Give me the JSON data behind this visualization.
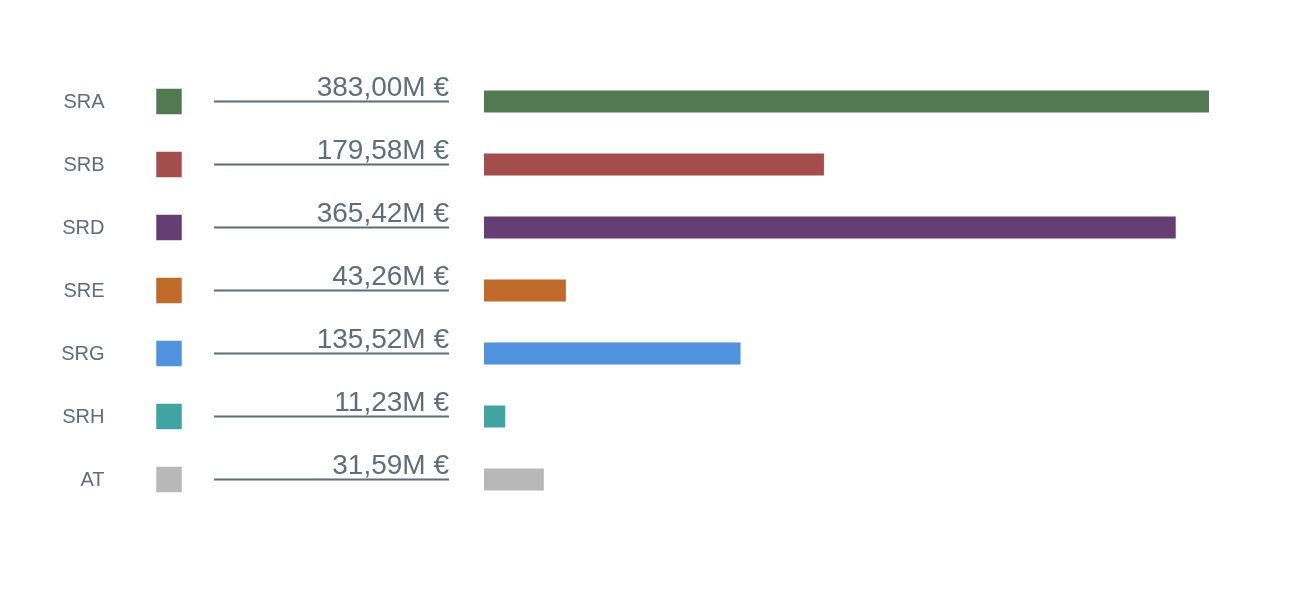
{
  "chart_data": {
    "type": "bar",
    "orientation": "horizontal",
    "categories": [
      "SRA",
      "SRB",
      "SRD",
      "SRE",
      "SRG",
      "SRH",
      "AT"
    ],
    "values": [
      383.0,
      179.58,
      365.42,
      43.26,
      135.52,
      11.23,
      31.59
    ],
    "value_labels": [
      "383,00M €",
      "179,58M €",
      "365,42M €",
      "43,26M €",
      "135,52M €",
      "11,23M €",
      "31,59M €"
    ],
    "colors": [
      "#527a52",
      "#a34d4d",
      "#653f73",
      "#c06b2c",
      "#5192de",
      "#42a3a3",
      "#b8b8b8"
    ],
    "tick_labels": "y",
    "grid": false
  }
}
